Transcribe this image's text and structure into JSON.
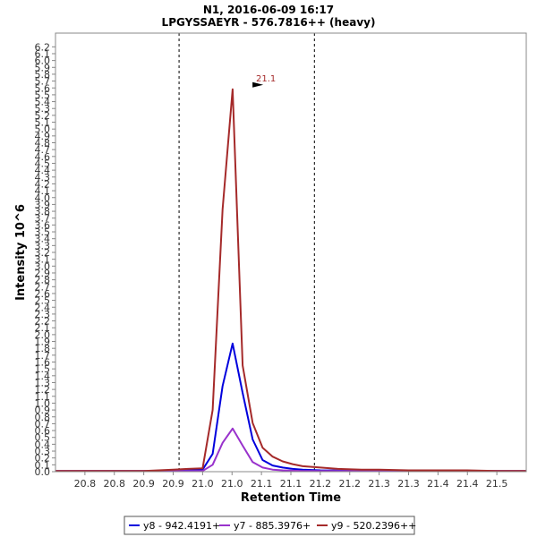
{
  "chart_data": {
    "type": "line",
    "title": "N1, 2016-06-09 16:17",
    "subtitle": "LPGYSSAEYR - 576.7816++ (heavy)",
    "xlabel": "Retention Time",
    "ylabel": "Intensity 10^6",
    "xlim": [
      20.75,
      21.55
    ],
    "ylim": [
      0,
      6.4
    ],
    "x_ticks": [
      20.8,
      20.85,
      20.9,
      20.95,
      21.0,
      21.05,
      21.1,
      21.15,
      21.2,
      21.25,
      21.3,
      21.35,
      21.4,
      21.45,
      21.5
    ],
    "x_tick_labels": [
      "20.8",
      "20.8",
      "20.9",
      "20.9",
      "21.0",
      "21.0",
      "21.1",
      "21.1",
      "21.2",
      "21.2",
      "21.3",
      "21.3",
      "21.4",
      "21.4",
      "21.5"
    ],
    "y_ticks": [
      0.0,
      0.1,
      0.2,
      0.3,
      0.4,
      0.5,
      0.6,
      0.7,
      0.8,
      0.9,
      1.0,
      1.1,
      1.2,
      1.3,
      1.4,
      1.5,
      1.6,
      1.7,
      1.8,
      1.9,
      2.0,
      2.1,
      2.2,
      2.3,
      2.4,
      2.5,
      2.6,
      2.7,
      2.8,
      2.9,
      3.0,
      3.1,
      3.2,
      3.3,
      3.4,
      3.5,
      3.6,
      3.7,
      3.8,
      3.9,
      4.0,
      4.1,
      4.2,
      4.3,
      4.4,
      4.5,
      4.6,
      4.7,
      4.8,
      4.9,
      5.0,
      5.1,
      5.2,
      5.3,
      5.4,
      5.5,
      5.6,
      5.7,
      5.8,
      5.9,
      6.0,
      6.1,
      6.2
    ],
    "y_tick_labels": [
      "0.0",
      "0.1",
      "0.2",
      "0.3",
      "0.4",
      "0.5",
      "0.6",
      "0.7",
      "0.8",
      "0.9",
      "1.0",
      "1.1",
      "1.2",
      "1.3",
      "1.4",
      "1.5",
      "1.6",
      "1.7",
      "1.8",
      "1.9",
      "2.0",
      "2.1",
      "2.2",
      "2.3",
      "2.4",
      "2.5",
      "2.6",
      "2.7",
      "2.8",
      "2.9",
      "3.0",
      "3.1",
      "3.2",
      "3.3",
      "3.4",
      "3.5",
      "3.6",
      "3.7",
      "3.8",
      "3.9",
      "4.0",
      "4.1",
      "4.2",
      "4.3",
      "4.4",
      "4.5",
      "4.6",
      "4.7",
      "4.8",
      "4.9",
      "5.0",
      "5.1",
      "5.2",
      "5.3",
      "5.4",
      "5.5",
      "5.6",
      "5.7",
      "5.8",
      "5.9",
      "6.0",
      "6.1",
      "6.2"
    ],
    "grid": false,
    "legend_position": "bottom",
    "integration_boundaries": [
      20.96,
      21.19
    ],
    "peak_annotation": {
      "x": 21.1,
      "y": 5.58,
      "label": "21.1",
      "color": "#a52a2a"
    },
    "series": [
      {
        "name": "y8 - 942.4191+",
        "color": "#0000dd",
        "x": [
          20.75,
          20.8,
          20.85,
          20.9,
          20.95,
          21.0,
          21.017,
          21.034,
          21.051,
          21.068,
          21.085,
          21.102,
          21.119,
          21.136,
          21.153,
          21.17,
          21.2,
          21.25,
          21.3,
          21.35,
          21.4,
          21.45,
          21.5,
          21.55
        ],
        "values": [
          0.01,
          0.01,
          0.01,
          0.01,
          0.01,
          0.03,
          0.26,
          1.25,
          1.87,
          1.15,
          0.47,
          0.17,
          0.09,
          0.06,
          0.04,
          0.03,
          0.02,
          0.015,
          0.012,
          0.01,
          0.01,
          0.01,
          0.01,
          0.01
        ]
      },
      {
        "name": "y7 - 885.3976+",
        "color": "#9932cc",
        "x": [
          20.75,
          20.8,
          20.85,
          20.9,
          20.95,
          21.0,
          21.017,
          21.034,
          21.051,
          21.068,
          21.085,
          21.102,
          21.119,
          21.136,
          21.153,
          21.17,
          21.2,
          21.25,
          21.3,
          21.35,
          21.4,
          21.45,
          21.5,
          21.55
        ],
        "values": [
          0.01,
          0.01,
          0.01,
          0.01,
          0.01,
          0.01,
          0.1,
          0.42,
          0.63,
          0.38,
          0.14,
          0.06,
          0.03,
          0.02,
          0.015,
          0.01,
          0.01,
          0.01,
          0.01,
          0.01,
          0.01,
          0.01,
          0.01,
          0.01
        ]
      },
      {
        "name": "y9 - 520.2396++",
        "color": "#a52a2a",
        "x": [
          20.75,
          20.8,
          20.85,
          20.9,
          20.95,
          20.975,
          21.0,
          21.017,
          21.034,
          21.051,
          21.068,
          21.085,
          21.102,
          21.119,
          21.136,
          21.153,
          21.17,
          21.2,
          21.23,
          21.27,
          21.3,
          21.35,
          21.4,
          21.45,
          21.5,
          21.55
        ],
        "values": [
          0.01,
          0.01,
          0.01,
          0.01,
          0.03,
          0.04,
          0.05,
          0.9,
          3.83,
          5.58,
          1.55,
          0.71,
          0.35,
          0.22,
          0.15,
          0.11,
          0.08,
          0.06,
          0.04,
          0.03,
          0.03,
          0.02,
          0.02,
          0.02,
          0.01,
          0.01
        ]
      }
    ]
  }
}
